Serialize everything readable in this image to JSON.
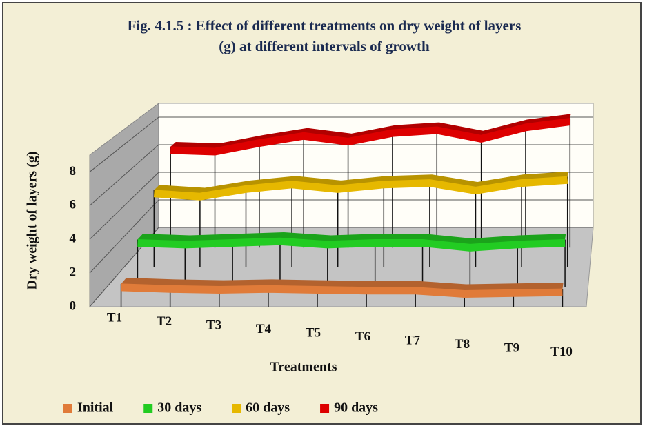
{
  "chart_data": {
    "type": "line",
    "title": "Fig. 4.1.5 : Effect of different treatments on dry weight of layers (g) at different intervals of growth",
    "x_label": "Treatments",
    "y_label": "Dry weight of layers (g)",
    "categories": [
      "T1",
      "T2",
      "T3",
      "T4",
      "T5",
      "T6",
      "T7",
      "T8",
      "T9",
      "T10"
    ],
    "series": [
      {
        "name": "Initial",
        "color": "#e07b39",
        "values": [
          0.9,
          0.8,
          0.75,
          0.8,
          0.75,
          0.7,
          0.7,
          0.5,
          0.55,
          0.6
        ]
      },
      {
        "name": "30 days",
        "color": "#22cc22",
        "values": [
          2.5,
          2.4,
          2.5,
          2.6,
          2.4,
          2.5,
          2.5,
          2.2,
          2.4,
          2.5
        ]
      },
      {
        "name": "60 days",
        "color": "#e6b800",
        "values": [
          4.6,
          4.4,
          4.9,
          5.2,
          4.9,
          5.2,
          5.3,
          4.8,
          5.3,
          5.5
        ]
      },
      {
        "name": "90 days",
        "color": "#dd0000",
        "values": [
          6.5,
          6.4,
          7.0,
          7.5,
          7.1,
          7.7,
          7.9,
          7.3,
          8.1,
          8.5
        ]
      }
    ],
    "ylim": [
      0,
      9
    ],
    "yticks": [
      0,
      2,
      4,
      6,
      8
    ],
    "grid": true,
    "legend": "bottom"
  }
}
